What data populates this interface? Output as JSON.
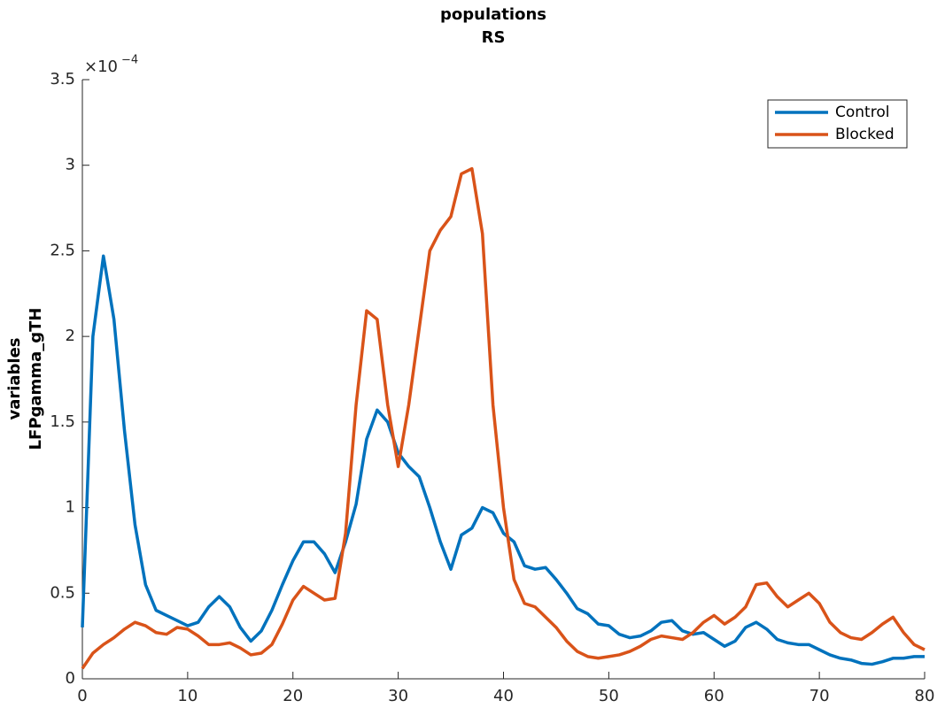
{
  "chart_data": {
    "type": "line",
    "title": "populations",
    "subtitle": "RS",
    "y_label": [
      "variables",
      "LFPgamma_gTH"
    ],
    "y_multiplier": {
      "base": "×10",
      "exponent": "−4"
    },
    "x": [
      0,
      1,
      2,
      3,
      4,
      5,
      6,
      7,
      8,
      9,
      10,
      11,
      12,
      13,
      14,
      15,
      16,
      17,
      18,
      19,
      20,
      21,
      22,
      23,
      24,
      25,
      26,
      27,
      28,
      29,
      30,
      31,
      32,
      33,
      34,
      35,
      36,
      37,
      38,
      39,
      40,
      41,
      42,
      43,
      44,
      45,
      46,
      47,
      48,
      49,
      50,
      51,
      52,
      53,
      54,
      55,
      56,
      57,
      58,
      59,
      60,
      61,
      62,
      63,
      64,
      65,
      66,
      67,
      68,
      69,
      70,
      71,
      72,
      73,
      74,
      75,
      76,
      77,
      78,
      79,
      80
    ],
    "series": [
      {
        "name": "Control",
        "color": "#0072bd",
        "values": [
          0.3,
          2.0,
          2.47,
          2.1,
          1.45,
          0.9,
          0.55,
          0.4,
          0.37,
          0.34,
          0.31,
          0.33,
          0.42,
          0.48,
          0.42,
          0.3,
          0.22,
          0.28,
          0.4,
          0.55,
          0.69,
          0.8,
          0.8,
          0.73,
          0.62,
          0.8,
          1.02,
          1.4,
          1.57,
          1.5,
          1.32,
          1.24,
          1.18,
          1.0,
          0.8,
          0.64,
          0.84,
          0.88,
          1.0,
          0.97,
          0.85,
          0.8,
          0.66,
          0.64,
          0.65,
          0.58,
          0.5,
          0.41,
          0.38,
          0.32,
          0.31,
          0.26,
          0.24,
          0.25,
          0.28,
          0.33,
          0.34,
          0.28,
          0.26,
          0.27,
          0.23,
          0.19,
          0.22,
          0.3,
          0.33,
          0.29,
          0.23,
          0.21,
          0.2,
          0.2,
          0.17,
          0.14,
          0.12,
          0.11,
          0.09,
          0.085,
          0.1,
          0.12,
          0.12,
          0.13,
          0.13
        ]
      },
      {
        "name": "Blocked",
        "color": "#d95319",
        "values": [
          0.06,
          0.15,
          0.2,
          0.24,
          0.29,
          0.33,
          0.31,
          0.27,
          0.26,
          0.3,
          0.29,
          0.25,
          0.2,
          0.2,
          0.21,
          0.18,
          0.14,
          0.15,
          0.2,
          0.32,
          0.46,
          0.54,
          0.5,
          0.46,
          0.47,
          0.85,
          1.6,
          2.15,
          2.1,
          1.6,
          1.24,
          1.6,
          2.05,
          2.5,
          2.62,
          2.7,
          2.95,
          2.98,
          2.6,
          1.6,
          1.0,
          0.58,
          0.44,
          0.42,
          0.36,
          0.3,
          0.22,
          0.16,
          0.13,
          0.12,
          0.13,
          0.14,
          0.16,
          0.19,
          0.23,
          0.25,
          0.24,
          0.23,
          0.27,
          0.33,
          0.37,
          0.32,
          0.36,
          0.42,
          0.55,
          0.56,
          0.48,
          0.42,
          0.46,
          0.5,
          0.44,
          0.33,
          0.27,
          0.24,
          0.23,
          0.27,
          0.32,
          0.36,
          0.27,
          0.2,
          0.17
        ]
      }
    ],
    "xlim": [
      0,
      80
    ],
    "xticks": [
      0,
      10,
      20,
      30,
      40,
      50,
      60,
      70,
      80
    ],
    "ylim": [
      0,
      3.5
    ],
    "yticks": [
      0,
      0.5,
      1,
      1.5,
      2,
      2.5,
      3,
      3.5
    ],
    "legend": "top-right",
    "grid": false
  }
}
